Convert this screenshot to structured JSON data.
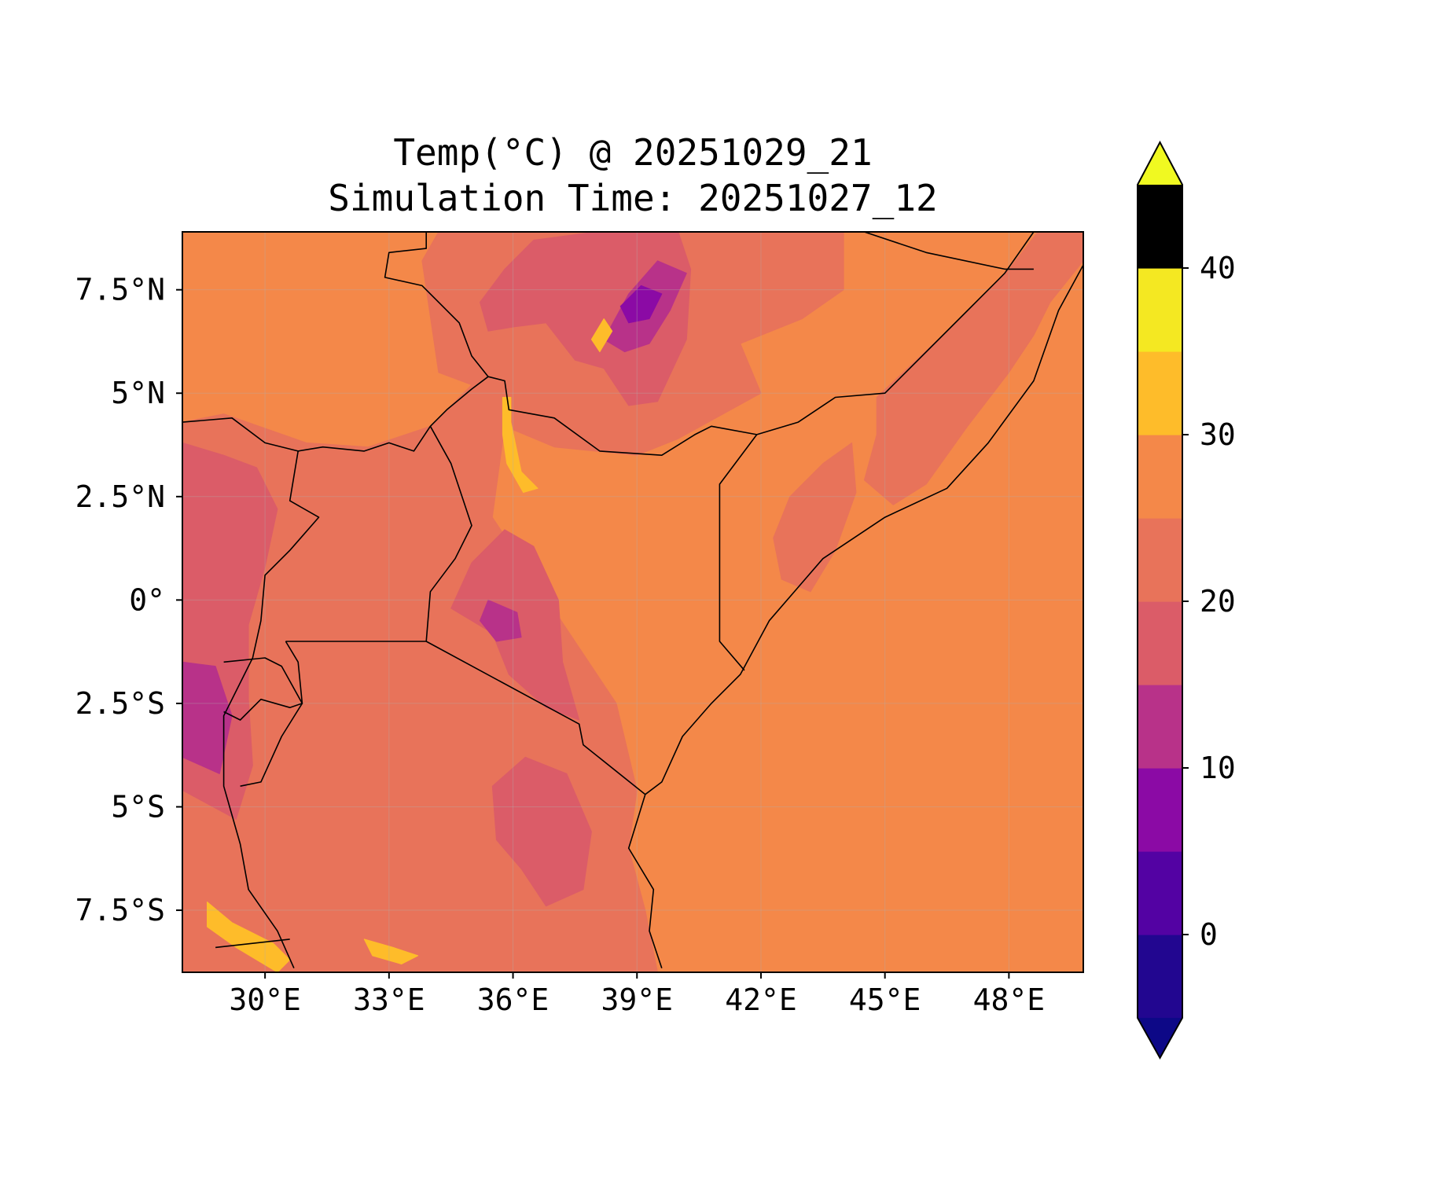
{
  "title": "Temp(°C) @ 20251029_21",
  "subtitle": "Simulation Time: 20251027_12",
  "map": {
    "extent": {
      "lon_min": 28.0,
      "lon_max": 49.8,
      "lat_min": -9.0,
      "lat_max": 8.9
    },
    "lon_ticks": [
      {
        "value": 30,
        "label": "30°E"
      },
      {
        "value": 33,
        "label": "33°E"
      },
      {
        "value": 36,
        "label": "36°E"
      },
      {
        "value": 39,
        "label": "39°E"
      },
      {
        "value": 42,
        "label": "42°E"
      },
      {
        "value": 45,
        "label": "45°E"
      },
      {
        "value": 48,
        "label": "48°E"
      }
    ],
    "lat_ticks": [
      {
        "value": 7.5,
        "label": "7.5°N"
      },
      {
        "value": 5,
        "label": "5°N"
      },
      {
        "value": 2.5,
        "label": "2.5°N"
      },
      {
        "value": 0,
        "label": "0°"
      },
      {
        "value": -2.5,
        "label": "2.5°S"
      },
      {
        "value": -5,
        "label": "5°S"
      },
      {
        "value": -7.5,
        "label": "7.5°S"
      }
    ],
    "gridlines": true,
    "background_value": 27
  },
  "colorbar": {
    "colormap": "plasma",
    "min": -5,
    "max": 45,
    "step": 5,
    "extend": "both",
    "under_color": "#0d0887",
    "over_color": "#f0f921",
    "colors": [
      "#220690",
      "#5302a3",
      "#8b0aa5",
      "#b83289",
      "#db5c68",
      "#e8735a",
      "#f48849",
      "#febc2a",
      "#f4e822"
    ],
    "ticks": [
      {
        "value": 0,
        "label": "0"
      },
      {
        "value": 10,
        "label": "10"
      },
      {
        "value": 20,
        "label": "20"
      },
      {
        "value": 30,
        "label": "30"
      },
      {
        "value": 40,
        "label": "40"
      }
    ]
  },
  "regions": [
    {
      "value": 22,
      "points": [
        [
          28,
          4.3
        ],
        [
          29,
          4.5
        ],
        [
          31,
          3.8
        ],
        [
          32.5,
          3.7
        ],
        [
          34,
          4.2
        ],
        [
          35,
          5.2
        ],
        [
          34.2,
          5.5
        ],
        [
          33.8,
          8.2
        ],
        [
          34.2,
          8.9
        ],
        [
          44,
          8.9
        ],
        [
          44,
          7.5
        ],
        [
          43,
          6.8
        ],
        [
          41.5,
          6.2
        ],
        [
          42,
          5
        ],
        [
          40,
          3.9
        ],
        [
          39,
          3.5
        ],
        [
          37,
          3.7
        ],
        [
          35.8,
          4.2
        ],
        [
          35.5,
          2
        ],
        [
          36.5,
          0.5
        ],
        [
          37.5,
          -1
        ],
        [
          38.5,
          -2.5
        ],
        [
          39,
          -4.6
        ],
        [
          38.8,
          -6
        ],
        [
          39.2,
          -7.5
        ],
        [
          39.5,
          -9
        ],
        [
          28,
          -9
        ]
      ]
    },
    {
      "value": 22,
      "points": [
        [
          44.8,
          4.9
        ],
        [
          46.5,
          6.5
        ],
        [
          48,
          8
        ],
        [
          48.7,
          8.9
        ],
        [
          49.8,
          8.9
        ],
        [
          49.8,
          8.2
        ],
        [
          49,
          7.2
        ],
        [
          48.6,
          6.4
        ],
        [
          48,
          5.5
        ],
        [
          47,
          4.2
        ],
        [
          46,
          2.8
        ],
        [
          45.2,
          2.3
        ],
        [
          44.5,
          2.9
        ],
        [
          44.8,
          4
        ]
      ]
    },
    {
      "value": 22,
      "points": [
        [
          42.3,
          1.5
        ],
        [
          42.7,
          2.5
        ],
        [
          43.5,
          3.3
        ],
        [
          44.2,
          3.8
        ],
        [
          44.3,
          2.6
        ],
        [
          43.8,
          1.2
        ],
        [
          43.2,
          0.2
        ],
        [
          42.5,
          0.5
        ]
      ]
    },
    {
      "value": 17,
      "points": [
        [
          28,
          3.8
        ],
        [
          29,
          3.5
        ],
        [
          29.8,
          3.2
        ],
        [
          30.3,
          2.2
        ],
        [
          30,
          0.8
        ],
        [
          29.6,
          -0.6
        ],
        [
          29.6,
          -2.4
        ],
        [
          29.7,
          -4
        ],
        [
          29.3,
          -5.3
        ],
        [
          28,
          -4.6
        ]
      ]
    },
    {
      "value": 17,
      "points": [
        [
          34.5,
          -0.2
        ],
        [
          35.5,
          -0.8
        ],
        [
          35.9,
          -1.8
        ],
        [
          36.8,
          -2.6
        ],
        [
          37.6,
          -2.9
        ],
        [
          37.2,
          -1.5
        ],
        [
          37.1,
          0
        ],
        [
          36.5,
          1.3
        ],
        [
          35.8,
          1.7
        ],
        [
          35,
          0.9
        ]
      ]
    },
    {
      "value": 17,
      "points": [
        [
          35.5,
          -4.5
        ],
        [
          36.3,
          -3.8
        ],
        [
          37.3,
          -4.2
        ],
        [
          37.9,
          -5.6
        ],
        [
          37.7,
          -7
        ],
        [
          36.8,
          -7.4
        ],
        [
          36.2,
          -6.5
        ],
        [
          35.6,
          -5.8
        ]
      ]
    },
    {
      "value": 17,
      "points": [
        [
          35.2,
          7.2
        ],
        [
          35.8,
          8
        ],
        [
          36.5,
          8.7
        ],
        [
          38,
          8.9
        ],
        [
          40,
          8.9
        ],
        [
          40.3,
          8
        ],
        [
          40.2,
          6.3
        ],
        [
          39.5,
          4.8
        ],
        [
          38.8,
          4.7
        ],
        [
          38.2,
          5.6
        ],
        [
          37.5,
          5.8
        ],
        [
          36.8,
          6.7
        ],
        [
          36,
          6.6
        ],
        [
          35.4,
          6.5
        ]
      ]
    },
    {
      "value": 12,
      "points": [
        [
          38.2,
          6.3
        ],
        [
          38.8,
          7.4
        ],
        [
          39.5,
          8.2
        ],
        [
          40.2,
          7.9
        ],
        [
          39.8,
          7
        ],
        [
          39.3,
          6.2
        ],
        [
          38.7,
          6
        ]
      ]
    },
    {
      "value": 12,
      "points": [
        [
          28,
          -1.5
        ],
        [
          28.8,
          -1.6
        ],
        [
          29.2,
          -2.8
        ],
        [
          28.9,
          -4.2
        ],
        [
          28,
          -3.8
        ]
      ]
    },
    {
      "value": 12,
      "points": [
        [
          35.4,
          0
        ],
        [
          36.1,
          -0.3
        ],
        [
          36.2,
          -0.9
        ],
        [
          35.6,
          -1
        ],
        [
          35.2,
          -0.5
        ]
      ]
    },
    {
      "value": 7,
      "points": [
        [
          38.6,
          7.1
        ],
        [
          39.1,
          7.6
        ],
        [
          39.6,
          7.4
        ],
        [
          39.3,
          6.8
        ],
        [
          38.8,
          6.7
        ]
      ]
    },
    {
      "value": 32,
      "points": [
        [
          35.75,
          4.9
        ],
        [
          35.95,
          4.9
        ],
        [
          35.95,
          4.3
        ],
        [
          36.2,
          3.1
        ],
        [
          36.6,
          2.7
        ],
        [
          36.25,
          2.6
        ],
        [
          35.85,
          3.3
        ],
        [
          35.75,
          4
        ]
      ]
    },
    {
      "value": 32,
      "points": [
        [
          37.9,
          6.3
        ],
        [
          38.2,
          6.8
        ],
        [
          38.4,
          6.5
        ],
        [
          38.1,
          6
        ]
      ]
    },
    {
      "value": 32,
      "points": [
        [
          28.6,
          -7.3
        ],
        [
          29.2,
          -7.8
        ],
        [
          30.2,
          -8.3
        ],
        [
          30.6,
          -8.7
        ],
        [
          30.3,
          -9
        ],
        [
          29.3,
          -8.4
        ],
        [
          28.6,
          -7.9
        ]
      ]
    },
    {
      "value": 32,
      "points": [
        [
          32.4,
          -8.2
        ],
        [
          33.1,
          -8.4
        ],
        [
          33.7,
          -8.6
        ],
        [
          33.3,
          -8.8
        ],
        [
          32.6,
          -8.6
        ]
      ]
    }
  ],
  "borders": [
    [
      [
        33.9,
        8.9
      ],
      [
        33.9,
        8.5
      ],
      [
        33.0,
        8.4
      ],
      [
        32.9,
        7.8
      ],
      [
        33.8,
        7.6
      ],
      [
        34.7,
        6.7
      ],
      [
        35.0,
        5.9
      ],
      [
        35.4,
        5.4
      ],
      [
        35.8,
        5.3
      ],
      [
        35.9,
        4.6
      ],
      [
        37.0,
        4.4
      ],
      [
        38.1,
        3.6
      ],
      [
        39.6,
        3.5
      ],
      [
        40.4,
        4.0
      ],
      [
        40.8,
        4.2
      ],
      [
        41.9,
        4.0
      ],
      [
        42.9,
        4.3
      ],
      [
        43.8,
        4.9
      ],
      [
        45.0,
        5.0
      ],
      [
        47.0,
        7.0
      ],
      [
        47.9,
        7.9
      ],
      [
        48.6,
        8.9
      ]
    ],
    [
      [
        44.5,
        8.9
      ],
      [
        46.0,
        8.4
      ],
      [
        47.9,
        8.0
      ],
      [
        48.6,
        8.0
      ]
    ],
    [
      [
        41.9,
        4.0
      ],
      [
        41.0,
        2.8
      ],
      [
        41.0,
        -1.0
      ],
      [
        41.6,
        -1.7
      ]
    ],
    [
      [
        28.0,
        4.3
      ],
      [
        29.2,
        4.4
      ],
      [
        30.0,
        3.8
      ],
      [
        30.8,
        3.6
      ],
      [
        31.4,
        3.7
      ],
      [
        32.4,
        3.6
      ],
      [
        33.0,
        3.8
      ],
      [
        33.6,
        3.6
      ],
      [
        34.0,
        4.2
      ],
      [
        34.4,
        4.6
      ],
      [
        35.0,
        5.1
      ],
      [
        35.4,
        5.4
      ]
    ],
    [
      [
        34.0,
        4.2
      ],
      [
        34.5,
        3.3
      ],
      [
        35.0,
        1.8
      ],
      [
        34.6,
        1.0
      ],
      [
        34.0,
        0.2
      ],
      [
        33.9,
        -1.0
      ]
    ],
    [
      [
        30.8,
        3.6
      ],
      [
        30.6,
        2.4
      ],
      [
        31.3,
        2.0
      ],
      [
        30.6,
        1.2
      ],
      [
        30.0,
        0.6
      ],
      [
        29.9,
        -0.5
      ],
      [
        29.7,
        -1.4
      ],
      [
        29.0,
        -2.8
      ],
      [
        29.0,
        -4.5
      ],
      [
        29.4,
        -5.9
      ],
      [
        29.6,
        -7.0
      ],
      [
        30.3,
        -8.0
      ],
      [
        30.7,
        -8.9
      ]
    ],
    [
      [
        30.5,
        -1.0
      ],
      [
        33.9,
        -1.0
      ],
      [
        37.6,
        -3.0
      ],
      [
        37.7,
        -3.5
      ],
      [
        39.2,
        -4.7
      ]
    ],
    [
      [
        30.5,
        -1.0
      ],
      [
        30.8,
        -1.5
      ],
      [
        30.9,
        -2.5
      ],
      [
        30.4,
        -3.3
      ],
      [
        29.9,
        -4.4
      ],
      [
        29.4,
        -4.5
      ]
    ],
    [
      [
        29.0,
        -1.5
      ],
      [
        30.0,
        -1.4
      ],
      [
        30.4,
        -1.6
      ],
      [
        30.9,
        -2.5
      ],
      [
        30.6,
        -2.6
      ],
      [
        29.9,
        -2.4
      ],
      [
        29.4,
        -2.9
      ],
      [
        29.0,
        -2.7
      ]
    ],
    [
      [
        28.8,
        -8.4
      ],
      [
        30.6,
        -8.2
      ]
    ],
    [
      [
        49.8,
        8.1
      ],
      [
        49.2,
        7.0
      ],
      [
        48.6,
        5.3
      ],
      [
        47.5,
        3.8
      ],
      [
        46.5,
        2.7
      ],
      [
        45.0,
        2.0
      ],
      [
        43.5,
        1.0
      ],
      [
        42.2,
        -0.5
      ],
      [
        41.5,
        -1.8
      ],
      [
        40.8,
        -2.5
      ],
      [
        40.1,
        -3.3
      ],
      [
        39.6,
        -4.4
      ],
      [
        39.2,
        -4.7
      ],
      [
        38.8,
        -6.0
      ],
      [
        39.4,
        -7.0
      ],
      [
        39.3,
        -8.0
      ],
      [
        39.6,
        -8.9
      ]
    ]
  ]
}
